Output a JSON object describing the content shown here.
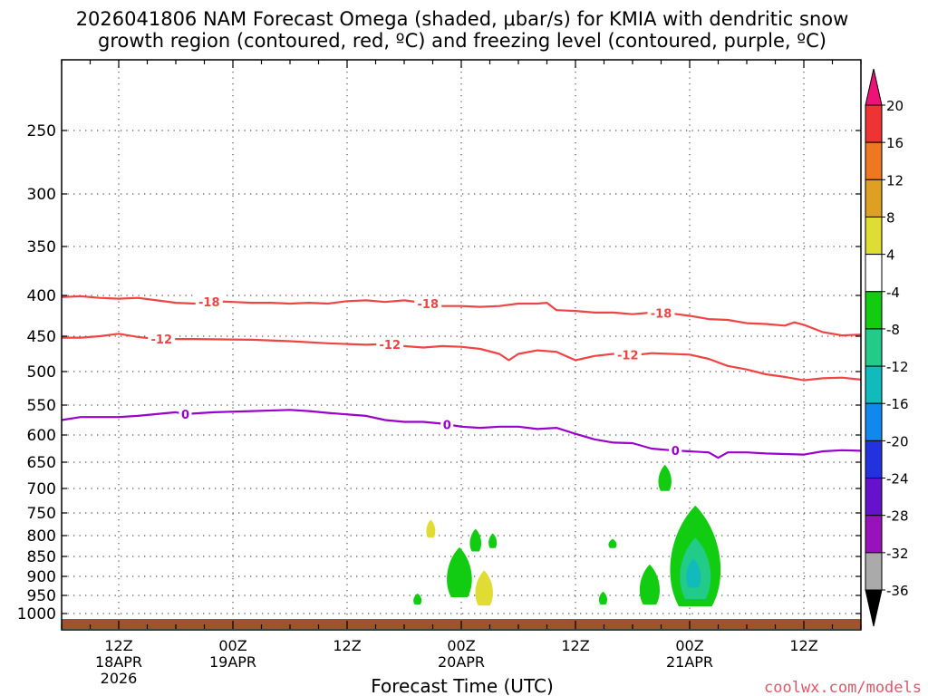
{
  "chart_data": {
    "type": "heatmap",
    "title_line1": "2026041806 NAM Forecast Omega (shaded, μbar/s) for KMIA with dendritic snow",
    "title_line2": "growth region (contoured, red, ºC) and freezing level (contoured, purple, ºC)",
    "xlabel": "Forecast Time (UTC)",
    "credit": "coolwx.com/models",
    "x_unit": "forecast hour",
    "xlim": [
      0,
      84
    ],
    "y_unit": "pressure (mb)",
    "ylim": [
      1020,
      200
    ],
    "yticks": [
      {
        "value": 250,
        "label": "250"
      },
      {
        "value": 300,
        "label": "300"
      },
      {
        "value": 350,
        "label": "350"
      },
      {
        "value": 400,
        "label": "400"
      },
      {
        "value": 450,
        "label": "450"
      },
      {
        "value": 500,
        "label": "500"
      },
      {
        "value": 550,
        "label": "550"
      },
      {
        "value": 600,
        "label": "600"
      },
      {
        "value": 650,
        "label": "650"
      },
      {
        "value": 700,
        "label": "700"
      },
      {
        "value": 750,
        "label": "750"
      },
      {
        "value": 800,
        "label": "800"
      },
      {
        "value": 850,
        "label": "850"
      },
      {
        "value": 900,
        "label": "900"
      },
      {
        "value": 950,
        "label": "950"
      },
      {
        "value": 1000,
        "label": "1000"
      }
    ],
    "xticks": [
      {
        "hour": 6,
        "lines": [
          "12Z",
          "18APR",
          "2026"
        ]
      },
      {
        "hour": 18,
        "lines": [
          "00Z",
          "19APR"
        ]
      },
      {
        "hour": 30,
        "lines": [
          "12Z"
        ]
      },
      {
        "hour": 42,
        "lines": [
          "00Z",
          "20APR"
        ]
      },
      {
        "hour": 54,
        "lines": [
          "12Z"
        ]
      },
      {
        "hour": 66,
        "lines": [
          "00Z",
          "21APR"
        ]
      },
      {
        "hour": 78,
        "lines": [
          "12Z"
        ]
      }
    ],
    "contours": [
      {
        "name": "-18 °C isotherm",
        "color": "#ee4444",
        "label": "-18",
        "label_hours": [
          15.5,
          38.5,
          63
        ],
        "points": [
          [
            0,
            402
          ],
          [
            2,
            401
          ],
          [
            4,
            403
          ],
          [
            6,
            404
          ],
          [
            8,
            403
          ],
          [
            10,
            406
          ],
          [
            12,
            409
          ],
          [
            14,
            410
          ],
          [
            16,
            407
          ],
          [
            18,
            408
          ],
          [
            20,
            409
          ],
          [
            22,
            409
          ],
          [
            24,
            410
          ],
          [
            26,
            409
          ],
          [
            28,
            410
          ],
          [
            30,
            407
          ],
          [
            32,
            406
          ],
          [
            34,
            408
          ],
          [
            36,
            406
          ],
          [
            38,
            409
          ],
          [
            40,
            413
          ],
          [
            42,
            413
          ],
          [
            44,
            414
          ],
          [
            46,
            413
          ],
          [
            48,
            410
          ],
          [
            50,
            410
          ],
          [
            51,
            409
          ],
          [
            52,
            418
          ],
          [
            54,
            419
          ],
          [
            56,
            421
          ],
          [
            58,
            421
          ],
          [
            60,
            423
          ],
          [
            62,
            421
          ],
          [
            64,
            422
          ],
          [
            66,
            425
          ],
          [
            68,
            429
          ],
          [
            70,
            430
          ],
          [
            72,
            434
          ],
          [
            74,
            435
          ],
          [
            76,
            437
          ],
          [
            77,
            433
          ],
          [
            78,
            436
          ],
          [
            80,
            445
          ],
          [
            82,
            449
          ],
          [
            84,
            448
          ]
        ]
      },
      {
        "name": "-12 °C isotherm",
        "color": "#ee4444",
        "label": "-12",
        "label_hours": [
          10.5,
          34.5,
          59.5
        ],
        "points": [
          [
            0,
            452
          ],
          [
            2,
            452
          ],
          [
            4,
            450
          ],
          [
            6,
            447
          ],
          [
            8,
            451
          ],
          [
            10,
            454
          ],
          [
            14,
            454
          ],
          [
            20,
            455
          ],
          [
            24,
            457
          ],
          [
            28,
            460
          ],
          [
            30,
            461
          ],
          [
            32,
            462
          ],
          [
            34,
            461
          ],
          [
            36,
            464
          ],
          [
            38,
            466
          ],
          [
            40,
            464
          ],
          [
            42,
            465
          ],
          [
            44,
            468
          ],
          [
            46,
            475
          ],
          [
            47,
            484
          ],
          [
            48,
            475
          ],
          [
            50,
            470
          ],
          [
            52,
            472
          ],
          [
            54,
            484
          ],
          [
            56,
            478
          ],
          [
            58,
            475
          ],
          [
            60,
            477
          ],
          [
            62,
            474
          ],
          [
            64,
            475
          ],
          [
            66,
            476
          ],
          [
            68,
            482
          ],
          [
            70,
            492
          ],
          [
            72,
            497
          ],
          [
            74,
            504
          ],
          [
            76,
            508
          ],
          [
            78,
            513
          ],
          [
            80,
            510
          ],
          [
            82,
            509
          ],
          [
            84,
            512
          ]
        ]
      },
      {
        "name": "0 °C freezing level",
        "color": "#9900cc",
        "label": "0",
        "label_hours": [
          13,
          40.5,
          64.5
        ],
        "points": [
          [
            0,
            575
          ],
          [
            2,
            570
          ],
          [
            4,
            570
          ],
          [
            6,
            570
          ],
          [
            8,
            568
          ],
          [
            10,
            565
          ],
          [
            12,
            562
          ],
          [
            13,
            565
          ],
          [
            16,
            562
          ],
          [
            20,
            560
          ],
          [
            24,
            558
          ],
          [
            26,
            560
          ],
          [
            28,
            563
          ],
          [
            32,
            568
          ],
          [
            34,
            575
          ],
          [
            36,
            578
          ],
          [
            38,
            578
          ],
          [
            40,
            581
          ],
          [
            42,
            586
          ],
          [
            44,
            588
          ],
          [
            46,
            586
          ],
          [
            48,
            586
          ],
          [
            50,
            590
          ],
          [
            52,
            588
          ],
          [
            54,
            598
          ],
          [
            56,
            608
          ],
          [
            58,
            614
          ],
          [
            60,
            615
          ],
          [
            62,
            625
          ],
          [
            64,
            628
          ],
          [
            66,
            630
          ],
          [
            68,
            632
          ],
          [
            69,
            642
          ],
          [
            70,
            632
          ],
          [
            72,
            632
          ],
          [
            74,
            634
          ],
          [
            76,
            635
          ],
          [
            78,
            636
          ],
          [
            80,
            630
          ],
          [
            82,
            628
          ],
          [
            84,
            629
          ]
        ]
      }
    ],
    "omega_regions": [
      {
        "value": 4,
        "color": "#e0dc33",
        "hour": 38.8,
        "p_top": 765,
        "p_bottom": 805
      },
      {
        "value": -4,
        "color": "#11cc11",
        "hour": 41.8,
        "p_top": 828,
        "p_bottom": 955
      },
      {
        "value": -4,
        "color": "#11cc11",
        "hour": 43.5,
        "p_top": 785,
        "p_bottom": 838
      },
      {
        "value": -4,
        "color": "#11cc11",
        "hour": 45.3,
        "p_top": 795,
        "p_bottom": 830
      },
      {
        "value": 4,
        "color": "#e0dc33",
        "hour": 44.4,
        "p_top": 885,
        "p_bottom": 978
      },
      {
        "value": -4,
        "color": "#11cc11",
        "hour": 37.4,
        "p_top": 945,
        "p_bottom": 975
      },
      {
        "value": -4,
        "color": "#11cc11",
        "hour": 56.9,
        "p_top": 940,
        "p_bottom": 975
      },
      {
        "value": -4,
        "color": "#11cc11",
        "hour": 57.9,
        "p_top": 808,
        "p_bottom": 830
      },
      {
        "value": -4,
        "color": "#11cc11",
        "hour": 63.4,
        "p_top": 655,
        "p_bottom": 705
      },
      {
        "value": -4,
        "color": "#11cc11",
        "hour": 61.8,
        "p_top": 870,
        "p_bottom": 975
      },
      {
        "value": -4,
        "color": "#11cc11",
        "hour": 66.6,
        "p_top": 735,
        "p_bottom": 980
      },
      {
        "value": -8,
        "color": "#22cc88",
        "hour": 66.6,
        "p_top": 805,
        "p_bottom": 960
      },
      {
        "value": -12,
        "color": "#11bbbb",
        "hour": 66.4,
        "p_top": 855,
        "p_bottom": 930
      }
    ],
    "colorbar": {
      "levels": [
        "20",
        "16",
        "12",
        "8",
        "4",
        "-4",
        "-8",
        "-12",
        "-16",
        "-20",
        "-24",
        "-28",
        "-32",
        "-36"
      ],
      "bands": [
        "#ee3333",
        "#ee7722",
        "#dda022",
        "#dddd33",
        "#ffffff",
        "#11cc11",
        "#22cc88",
        "#11bbbb",
        "#1188ee",
        "#2233dd",
        "#6611cc",
        "#9911bb",
        "#aaaaaa"
      ],
      "top_arrow_color": "#ee1177",
      "bottom_arrow_color": "#000000"
    }
  }
}
